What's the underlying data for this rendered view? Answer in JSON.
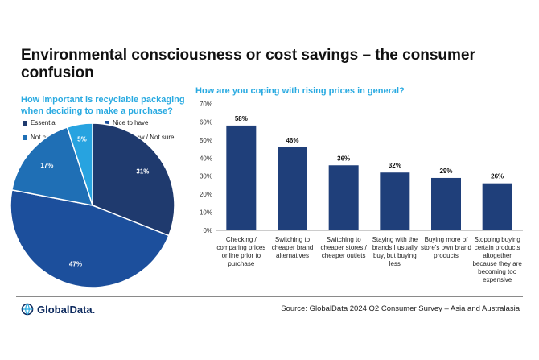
{
  "slide": {
    "title": "Environmental consciousness or cost savings – the consumer confusion",
    "source": "Source: GlobalData 2024 Q2 Consumer Survey – Asia and Australasia",
    "logo_text": "GlobalData."
  },
  "colors": {
    "accent": "#29aae1",
    "navy": "#1f3a6e",
    "royal": "#1c4f9c",
    "mid": "#1f6fb5",
    "light": "#27a3e0",
    "bar": "#1f3f7a"
  },
  "chart_data": [
    {
      "type": "pie",
      "title": "How important is recyclable packaging when deciding to make a purchase?",
      "categories": [
        "Essential",
        "Nice to have",
        "Not necessary",
        "Don’t know / Not sure"
      ],
      "values": [
        31,
        47,
        17,
        5
      ],
      "slice_labels": [
        "31%",
        "47%",
        "17%",
        "5%"
      ],
      "colors": [
        "#1f3a6e",
        "#1c4f9c",
        "#1f6fb5",
        "#27a3e0"
      ],
      "legend_placement": "top"
    },
    {
      "type": "bar",
      "title": "How are you coping with rising prices in general?",
      "categories": [
        "Checking / comparing prices online prior to purchase",
        "Switching to cheaper brand alternatives",
        "Switching to cheaper stores / cheaper outlets",
        "Staying with the brands I usually buy, but buying less",
        "Buying more of store's own brand products",
        "Stopping buying certain products altogether because they are becoming too expensive"
      ],
      "values": [
        58,
        46,
        36,
        32,
        29,
        26
      ],
      "data_labels": [
        "58%",
        "46%",
        "36%",
        "32%",
        "29%",
        "26%"
      ],
      "ylim": [
        0,
        70
      ],
      "yticks": [
        "0%",
        "10%",
        "20%",
        "30%",
        "40%",
        "50%",
        "60%",
        "70%"
      ],
      "grid": false
    }
  ]
}
